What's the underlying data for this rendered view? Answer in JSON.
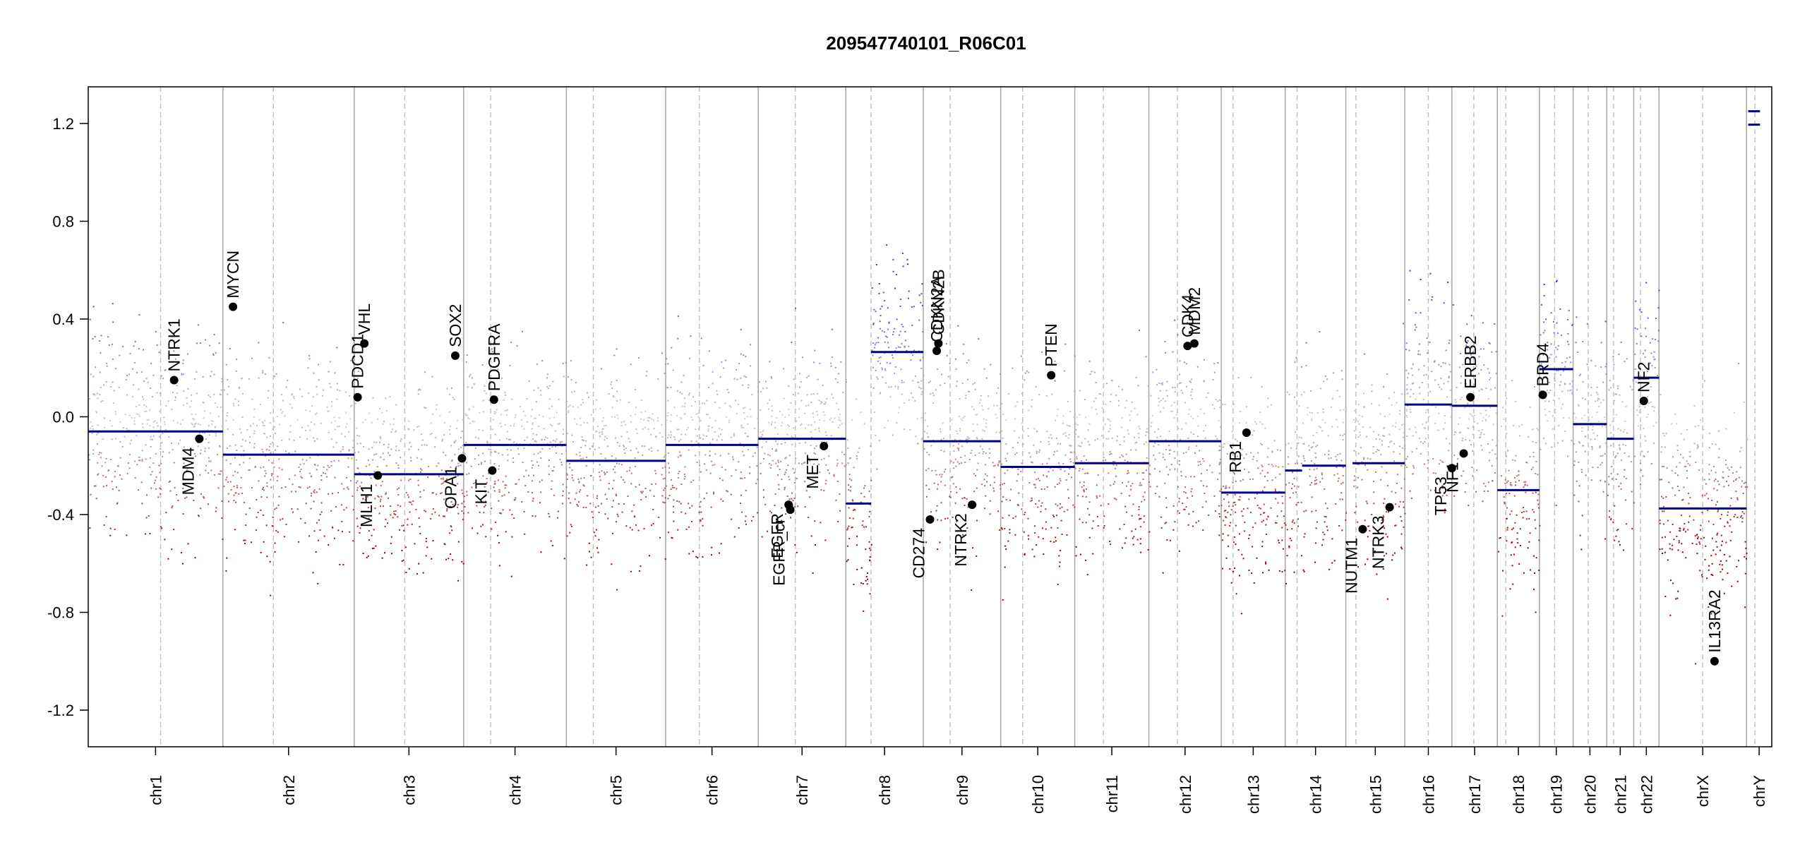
{
  "chart_data": {
    "type": "scatter",
    "title": "209547740101_R06C01",
    "xlabel": "",
    "ylabel": "",
    "ylim": [
      -1.35,
      1.35
    ],
    "y_ticks": [
      -1.2,
      -0.8,
      -0.4,
      0.0,
      0.4,
      0.8,
      1.2
    ],
    "y_tick_labels": [
      "-1.2",
      "-0.8",
      "-0.4",
      "0.0",
      "0.4",
      "0.8",
      "1.2"
    ],
    "colors": {
      "gain": "#2b2bd9",
      "loss": "#9e0000",
      "neutral": "#c8c8c8",
      "segment": "#00008b",
      "boundary": "#aaaaaa",
      "centromere": "#bdbdbd",
      "gene": "#000000"
    },
    "chromosomes": [
      {
        "name": "chr1",
        "start": 0.0,
        "end": 0.08,
        "cen": 0.043
      },
      {
        "name": "chr2",
        "start": 0.08,
        "end": 0.158,
        "cen": 0.11
      },
      {
        "name": "chr3",
        "start": 0.158,
        "end": 0.223,
        "cen": 0.188
      },
      {
        "name": "chr4",
        "start": 0.223,
        "end": 0.284,
        "cen": 0.239
      },
      {
        "name": "chr5",
        "start": 0.284,
        "end": 0.343,
        "cen": 0.3
      },
      {
        "name": "chr6",
        "start": 0.343,
        "end": 0.398,
        "cen": 0.363
      },
      {
        "name": "chr7",
        "start": 0.398,
        "end": 0.45,
        "cen": 0.42
      },
      {
        "name": "chr8",
        "start": 0.45,
        "end": 0.496,
        "cen": 0.465
      },
      {
        "name": "chr9",
        "start": 0.496,
        "end": 0.542,
        "cen": 0.512
      },
      {
        "name": "chr10",
        "start": 0.542,
        "end": 0.586,
        "cen": 0.555
      },
      {
        "name": "chr11",
        "start": 0.586,
        "end": 0.63,
        "cen": 0.603
      },
      {
        "name": "chr12",
        "start": 0.63,
        "end": 0.673,
        "cen": 0.647
      },
      {
        "name": "chr13",
        "start": 0.673,
        "end": 0.711,
        "cen": 0.68
      },
      {
        "name": "chr14",
        "start": 0.711,
        "end": 0.747,
        "cen": 0.718
      },
      {
        "name": "chr15",
        "start": 0.747,
        "end": 0.782,
        "cen": 0.753
      },
      {
        "name": "chr16",
        "start": 0.782,
        "end": 0.81,
        "cen": 0.796
      },
      {
        "name": "chr17",
        "start": 0.81,
        "end": 0.837,
        "cen": 0.823
      },
      {
        "name": "chr18",
        "start": 0.837,
        "end": 0.862,
        "cen": 0.842
      },
      {
        "name": "chr19",
        "start": 0.862,
        "end": 0.882,
        "cen": 0.871
      },
      {
        "name": "chr20",
        "start": 0.882,
        "end": 0.902,
        "cen": 0.891
      },
      {
        "name": "chr21",
        "start": 0.902,
        "end": 0.918,
        "cen": 0.906
      },
      {
        "name": "chr22",
        "start": 0.918,
        "end": 0.933,
        "cen": 0.922
      },
      {
        "name": "chrX",
        "start": 0.933,
        "end": 0.985,
        "cen": 0.959
      },
      {
        "name": "chrY",
        "start": 0.985,
        "end": 1.0,
        "cen": 0.99
      }
    ],
    "segments": [
      {
        "chrom": "chr1",
        "x0": 0.0,
        "x1": 0.08,
        "value": -0.06
      },
      {
        "chrom": "chr2",
        "x0": 0.08,
        "x1": 0.158,
        "value": -0.155
      },
      {
        "chrom": "chr3",
        "x0": 0.158,
        "x1": 0.223,
        "value": -0.235
      },
      {
        "chrom": "chr4",
        "x0": 0.223,
        "x1": 0.284,
        "value": -0.115
      },
      {
        "chrom": "chr5",
        "x0": 0.284,
        "x1": 0.343,
        "value": -0.18
      },
      {
        "chrom": "chr6",
        "x0": 0.343,
        "x1": 0.398,
        "value": -0.115
      },
      {
        "chrom": "chr7",
        "x0": 0.398,
        "x1": 0.45,
        "value": -0.09
      },
      {
        "chrom": "chr8",
        "x0": 0.45,
        "x1": 0.465,
        "value": -0.355
      },
      {
        "chrom": "chr8",
        "x0": 0.465,
        "x1": 0.496,
        "value": 0.265
      },
      {
        "chrom": "chr9",
        "x0": 0.496,
        "x1": 0.542,
        "value": -0.1
      },
      {
        "chrom": "chr10",
        "x0": 0.542,
        "x1": 0.586,
        "value": -0.205
      },
      {
        "chrom": "chr11",
        "x0": 0.586,
        "x1": 0.63,
        "value": -0.19
      },
      {
        "chrom": "chr12",
        "x0": 0.63,
        "x1": 0.673,
        "value": -0.1
      },
      {
        "chrom": "chr13",
        "x0": 0.673,
        "x1": 0.711,
        "value": -0.31
      },
      {
        "chrom": "chr14",
        "x0": 0.711,
        "x1": 0.721,
        "value": -0.22
      },
      {
        "chrom": "chr14",
        "x0": 0.721,
        "x1": 0.747,
        "value": -0.2
      },
      {
        "chrom": "chr15",
        "x0": 0.751,
        "x1": 0.782,
        "value": -0.19
      },
      {
        "chrom": "chr16",
        "x0": 0.782,
        "x1": 0.81,
        "value": 0.05
      },
      {
        "chrom": "chr17",
        "x0": 0.81,
        "x1": 0.837,
        "value": 0.045
      },
      {
        "chrom": "chr18",
        "x0": 0.837,
        "x1": 0.862,
        "value": -0.3
      },
      {
        "chrom": "chr19",
        "x0": 0.862,
        "x1": 0.882,
        "value": 0.195
      },
      {
        "chrom": "chr20",
        "x0": 0.882,
        "x1": 0.902,
        "value": -0.03
      },
      {
        "chrom": "chr21",
        "x0": 0.902,
        "x1": 0.918,
        "value": -0.09
      },
      {
        "chrom": "chr22",
        "x0": 0.918,
        "x1": 0.933,
        "value": 0.16
      },
      {
        "chrom": "chrX",
        "x0": 0.933,
        "x1": 0.985,
        "value": -0.375
      },
      {
        "chrom": "chrY",
        "x0": 0.986,
        "x1": 0.993,
        "value": 1.195
      },
      {
        "chrom": "chrY",
        "x0": 0.986,
        "x1": 0.993,
        "value": 1.25
      }
    ],
    "genes": [
      {
        "name": "NTRK1",
        "x": 0.051,
        "value": 0.15,
        "side": "above"
      },
      {
        "name": "MDM4",
        "x": 0.066,
        "value": -0.09,
        "side": "below"
      },
      {
        "name": "MYCN",
        "x": 0.086,
        "value": 0.45,
        "side": "above"
      },
      {
        "name": "PDCD1",
        "x": 0.16,
        "value": 0.08,
        "side": "above"
      },
      {
        "name": "VHL",
        "x": 0.164,
        "value": 0.3,
        "side": "above"
      },
      {
        "name": "MLH1",
        "x": 0.172,
        "value": -0.24,
        "side": "below"
      },
      {
        "name": "SOX2",
        "x": 0.218,
        "value": 0.25,
        "side": "above"
      },
      {
        "name": "OPA1",
        "x": 0.222,
        "value": -0.17,
        "side": "below"
      },
      {
        "name": "PDGFRA",
        "x": 0.241,
        "value": 0.07,
        "side": "above"
      },
      {
        "name": "KIT",
        "x": 0.24,
        "value": -0.22,
        "side": "below"
      },
      {
        "name": "EGFR",
        "x": 0.416,
        "value": -0.36,
        "side": "below"
      },
      {
        "name": "EGFR_cr",
        "x": 0.417,
        "value": -0.38,
        "side": "below"
      },
      {
        "name": "MET",
        "x": 0.437,
        "value": -0.12,
        "side": "below"
      },
      {
        "name": "CDKN2A",
        "x": 0.504,
        "value": 0.27,
        "side": "above"
      },
      {
        "name": "CDKN2B",
        "x": 0.505,
        "value": 0.3,
        "side": "above"
      },
      {
        "name": "CD274",
        "x": 0.5,
        "value": -0.42,
        "side": "below"
      },
      {
        "name": "NTRK2",
        "x": 0.525,
        "value": -0.36,
        "side": "below"
      },
      {
        "name": "PTEN",
        "x": 0.572,
        "value": 0.17,
        "side": "above"
      },
      {
        "name": "CDK4",
        "x": 0.653,
        "value": 0.29,
        "side": "above"
      },
      {
        "name": "MDM2",
        "x": 0.657,
        "value": 0.3,
        "side": "above"
      },
      {
        "name": "RB1",
        "x": 0.688,
        "value": -0.065,
        "side": "below"
      },
      {
        "name": "NUTM1",
        "x": 0.757,
        "value": -0.46,
        "side": "below"
      },
      {
        "name": "NTRK3",
        "x": 0.773,
        "value": -0.37,
        "side": "below"
      },
      {
        "name": "TP53",
        "x": 0.81,
        "value": -0.21,
        "side": "below"
      },
      {
        "name": "NF1",
        "x": 0.817,
        "value": -0.15,
        "side": "below"
      },
      {
        "name": "ERBB2",
        "x": 0.821,
        "value": 0.08,
        "side": "above"
      },
      {
        "name": "BRD4",
        "x": 0.864,
        "value": 0.09,
        "side": "above"
      },
      {
        "name": "NF2",
        "x": 0.924,
        "value": 0.065,
        "side": "above"
      },
      {
        "name": "IL13RA2",
        "x": 0.966,
        "value": -1.0,
        "side": "above"
      }
    ]
  }
}
